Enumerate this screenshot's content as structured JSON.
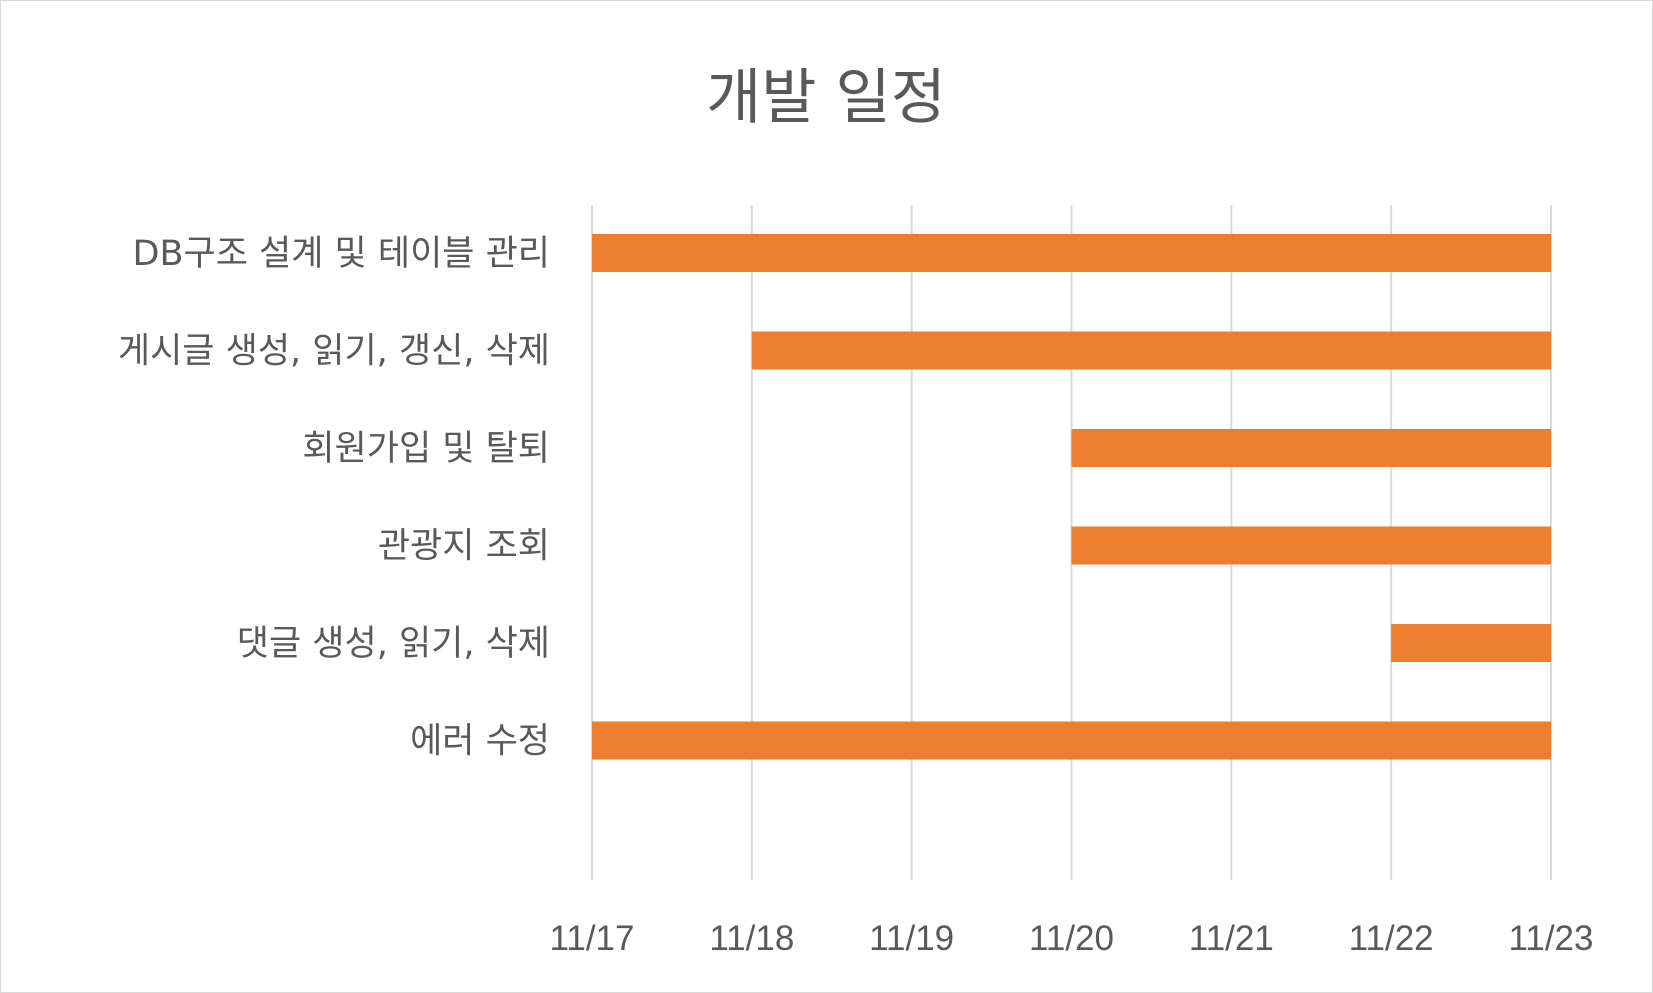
{
  "chart_data": {
    "type": "bar",
    "orientation": "horizontal",
    "title": "개발 일정",
    "categories": [
      "DB구조 설계 및 테이블 관리",
      "게시글 생성, 읽기, 갱신, 삭제",
      "회원가입 및 탈퇴",
      "관광지 조회",
      "댓글 생성, 읽기, 삭제",
      "에러 수정"
    ],
    "series": [
      {
        "start": [
          "11/17",
          "11/18",
          "11/20",
          "11/20",
          "11/22",
          "11/17"
        ],
        "end": [
          "11/23",
          "11/23",
          "11/23",
          "11/23",
          "11/23",
          "11/23"
        ]
      }
    ],
    "x_ticks": [
      "11/17",
      "11/18",
      "11/19",
      "11/20",
      "11/21",
      "11/22",
      "11/23"
    ],
    "xlim": [
      "11/17",
      "11/23"
    ],
    "xlabel": "",
    "ylabel": "",
    "grid": "vertical",
    "legend": "none",
    "colors": {
      "bar": "#ed7d31",
      "grid": "#d9d9d9",
      "text": "#595959"
    }
  }
}
